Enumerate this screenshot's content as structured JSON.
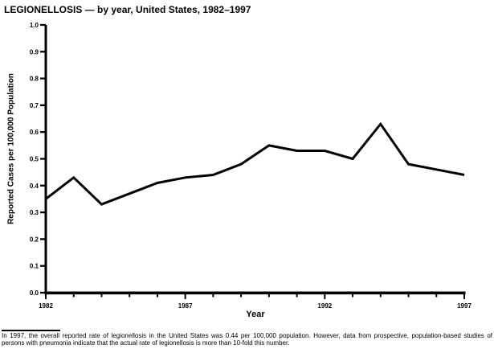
{
  "title": "LEGIONELLOSIS — by year, United States, 1982–1997",
  "chart_data": {
    "type": "line",
    "x": [
      1982,
      1983,
      1984,
      1985,
      1986,
      1987,
      1988,
      1989,
      1990,
      1991,
      1992,
      1993,
      1994,
      1995,
      1996,
      1997
    ],
    "values": [
      0.35,
      0.43,
      0.33,
      0.37,
      0.41,
      0.43,
      0.44,
      0.48,
      0.55,
      0.53,
      0.53,
      0.5,
      0.63,
      0.48,
      0.46,
      0.44
    ],
    "title": "LEGIONELLOSIS — by year, United States, 1982–1997",
    "xlabel": "Year",
    "ylabel": "Reported Cases per 100,000 Population",
    "xlim": [
      1982,
      1997
    ],
    "ylim": [
      0.0,
      1.0
    ],
    "ytick_step": 0.1,
    "xticks_labeled": [
      1982,
      1987,
      1992,
      1997
    ],
    "xtick_minor_step": 1,
    "grid": false,
    "legend": "none",
    "line_color": "#000000",
    "axis_color": "#000000",
    "background_color": "#ffffff"
  },
  "footnote": {
    "text": "In 1997, the overall reported rate of legionellosis in the United States was 0.44 per 100,000 population. However, data from prospective, population-based studies of persons with pneumonia indicate that the actual rate of legionellosis is more than 10-fold this number."
  }
}
